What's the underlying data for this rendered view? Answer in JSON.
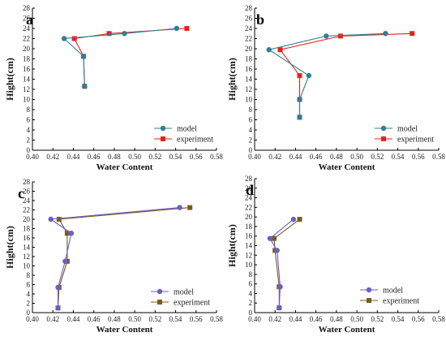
{
  "chart_data": [
    {
      "panel": "a",
      "type": "line",
      "xlabel": "Water Content",
      "ylabel": "Hight(cm)",
      "xlim": [
        0.4,
        0.58
      ],
      "ylim": [
        0,
        28
      ],
      "xticks": [
        "0.40",
        "0.42",
        "0.44",
        "0.46",
        "0.48",
        "0.50",
        "0.52",
        "0.54",
        "0.56",
        "0.58"
      ],
      "yticks": [
        "0",
        "2",
        "4",
        "6",
        "8",
        "10",
        "12",
        "14",
        "16",
        "18",
        "20",
        "22",
        "24",
        "26",
        "28"
      ],
      "legend": "bottom-right",
      "series": [
        {
          "name": "model",
          "color": "#2f7f95",
          "marker": "circle",
          "x": [
            0.451,
            0.45,
            0.431,
            0.49,
            0.541
          ],
          "y": [
            12.6,
            18.5,
            22.0,
            23.0,
            24.0
          ]
        },
        {
          "name": "experiment",
          "color": "#e8231c",
          "marker": "square",
          "x": [
            0.451,
            0.45,
            0.441,
            0.475,
            0.551
          ],
          "y": [
            12.6,
            18.5,
            22.0,
            23.0,
            24.0
          ]
        }
      ]
    },
    {
      "panel": "b",
      "type": "line",
      "xlabel": "Water Content",
      "ylabel": "Hight(cm)",
      "xlim": [
        0.4,
        0.58
      ],
      "ylim": [
        0,
        28
      ],
      "xticks": [
        "0.40",
        "0.42",
        "0.44",
        "0.46",
        "0.48",
        "0.50",
        "0.52",
        "0.54",
        "0.56",
        "0.58"
      ],
      "yticks": [
        "0",
        "2",
        "4",
        "6",
        "8",
        "10",
        "12",
        "14",
        "16",
        "18",
        "20",
        "22",
        "24",
        "26",
        "28"
      ],
      "legend": "bottom-right",
      "series": [
        {
          "name": "model",
          "color": "#2f7f95",
          "marker": "circle",
          "x": [
            0.444,
            0.444,
            0.453,
            0.414,
            0.47,
            0.528
          ],
          "y": [
            6.5,
            10.0,
            14.7,
            19.8,
            22.5,
            23.0
          ]
        },
        {
          "name": "experiment",
          "color": "#e8231c",
          "marker": "square",
          "x": [
            0.444,
            0.444,
            0.444,
            0.425,
            0.484,
            0.554
          ],
          "y": [
            6.5,
            10.0,
            14.7,
            19.8,
            22.5,
            23.0
          ]
        }
      ]
    },
    {
      "panel": "c",
      "type": "line",
      "xlabel": "Water Content",
      "ylabel": "Hight(cm)",
      "xlim": [
        0.4,
        0.58
      ],
      "ylim": [
        0,
        28
      ],
      "xticks": [
        "0.40",
        "0.42",
        "0.44",
        "0.46",
        "0.48",
        "0.50",
        "0.52",
        "0.54",
        "0.56",
        "0.58"
      ],
      "yticks": [
        "0",
        "2",
        "4",
        "6",
        "8",
        "10",
        "12",
        "14",
        "16",
        "18",
        "20",
        "22",
        "24",
        "26",
        "28"
      ],
      "legend": "bottom-right",
      "series": [
        {
          "name": "model",
          "color": "#6a5ec8",
          "marker": "circle",
          "x": [
            0.425,
            0.425,
            0.432,
            0.438,
            0.418,
            0.544
          ],
          "y": [
            1.0,
            5.4,
            11.0,
            17.0,
            20.0,
            22.5
          ]
        },
        {
          "name": "experiment",
          "color": "#7b5a1e",
          "marker": "square",
          "x": [
            0.425,
            0.426,
            0.434,
            0.434,
            0.426,
            0.554
          ],
          "y": [
            1.0,
            5.4,
            11.0,
            17.0,
            20.0,
            22.5
          ]
        }
      ]
    },
    {
      "panel": "d",
      "type": "line",
      "xlabel": "Water Content",
      "ylabel": "Hight(cm)",
      "xlim": [
        0.4,
        0.58
      ],
      "ylim": [
        0,
        28
      ],
      "xticks": [
        "0.40",
        "0.42",
        "0.44",
        "0.46",
        "0.48",
        "0.50",
        "0.52",
        "0.54",
        "0.56",
        "0.58"
      ],
      "yticks": [
        "0",
        "2",
        "4",
        "6",
        "8",
        "10",
        "12",
        "14",
        "16",
        "18",
        "20",
        "22",
        "24",
        "26",
        "28"
      ],
      "legend": "bottom-right",
      "series": [
        {
          "name": "model",
          "color": "#6a5ec8",
          "marker": "circle",
          "x": [
            0.424,
            0.425,
            0.422,
            0.415,
            0.438
          ],
          "y": [
            1.0,
            5.4,
            13.0,
            15.5,
            19.5
          ]
        },
        {
          "name": "experiment",
          "color": "#7b5a1e",
          "marker": "square",
          "x": [
            0.424,
            0.424,
            0.42,
            0.419,
            0.444
          ],
          "y": [
            1.0,
            5.4,
            13.0,
            15.5,
            19.5
          ]
        }
      ]
    }
  ]
}
